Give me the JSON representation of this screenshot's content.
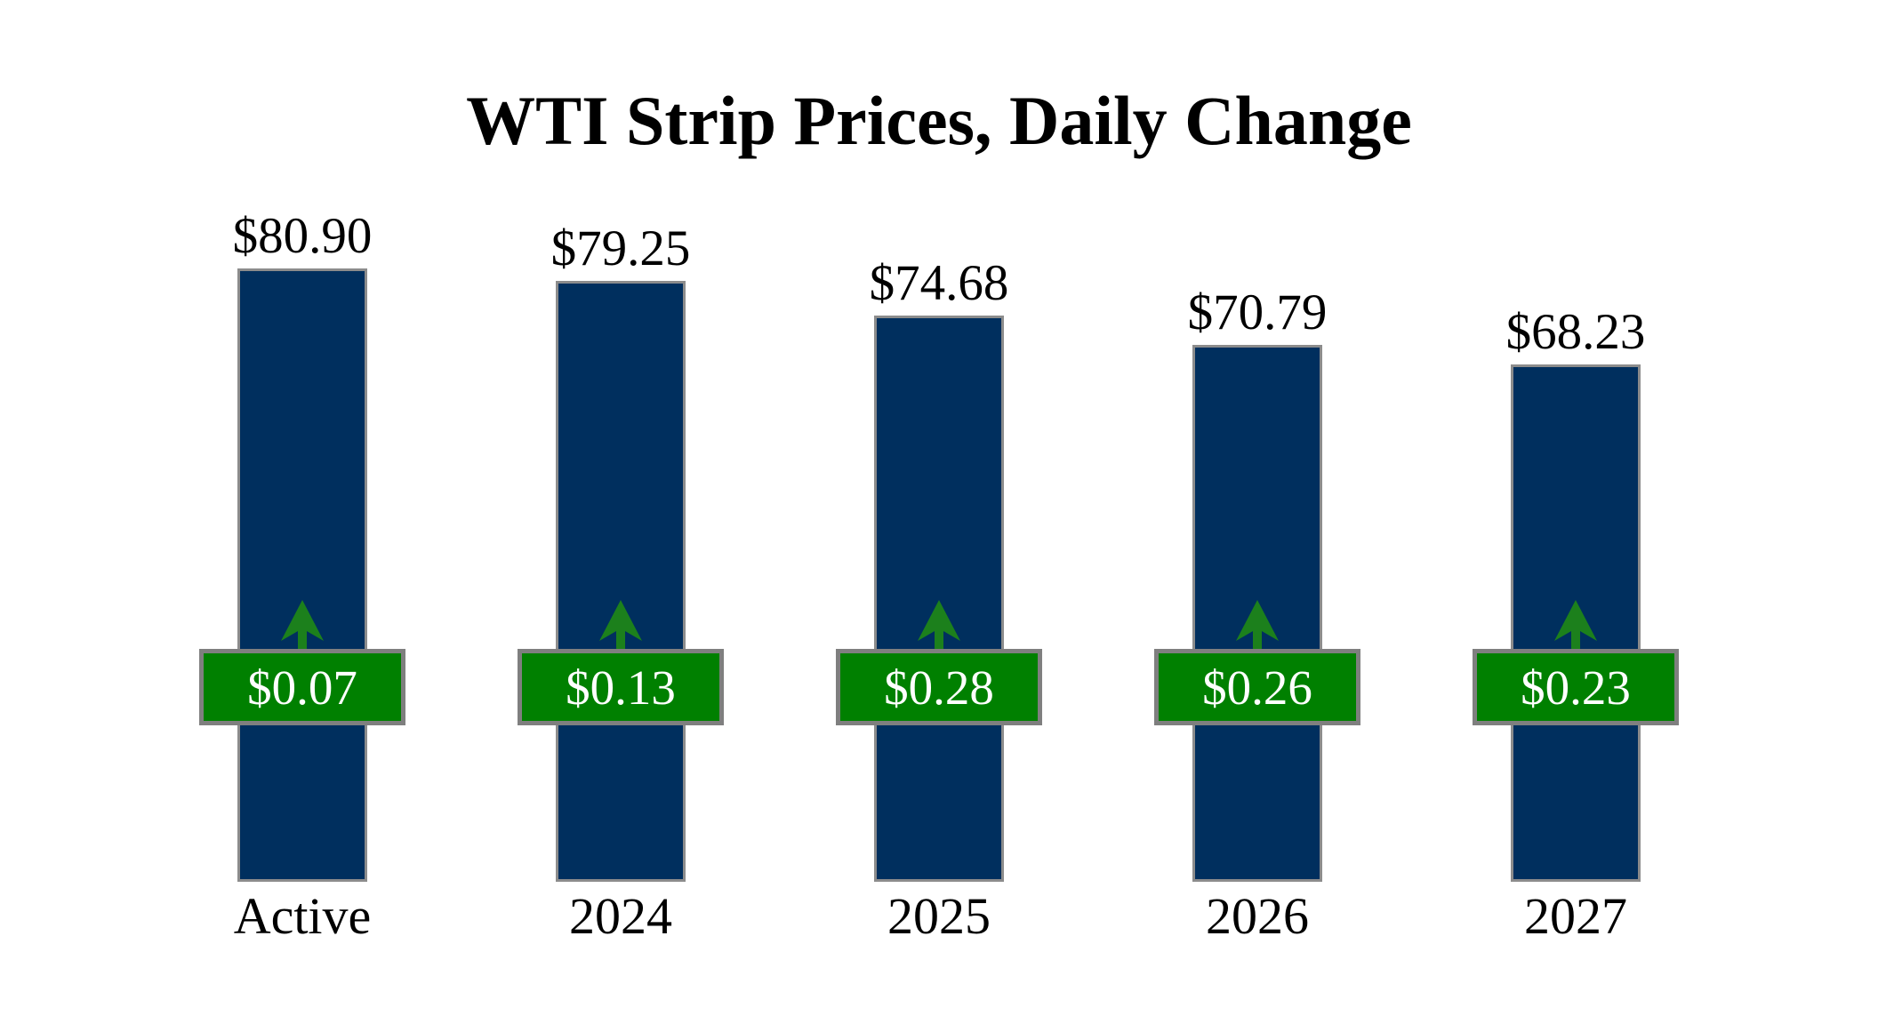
{
  "title": "WTI Strip Prices, Daily Change",
  "colors": {
    "background": "#ffffff",
    "bar_fill": "#002f5e",
    "bar_border": "#8c8c8c",
    "badge_fill": "#008000",
    "badge_border": "#7f7f7f",
    "badge_text": "#ffffff",
    "arrow_green": "#1c801c",
    "text": "#000000"
  },
  "icons": {
    "up_arrow": "up-arrow-icon"
  },
  "chart_data": {
    "type": "bar",
    "title": "WTI Strip Prices, Daily Change",
    "categories": [
      "Active",
      "2024",
      "2025",
      "2026",
      "2027"
    ],
    "series": [
      {
        "name": "WTI strip price",
        "unit": "$/bbl",
        "values": [
          80.9,
          79.25,
          74.68,
          70.79,
          68.23
        ],
        "labels": [
          "$80.90",
          "$79.25",
          "$74.68",
          "$70.79",
          "$68.23"
        ],
        "label_position": "above-bar"
      },
      {
        "name": "Daily change",
        "unit": "$",
        "values": [
          0.07,
          0.13,
          0.28,
          0.26,
          0.23
        ],
        "labels": [
          "$0.07",
          "$0.13",
          "$0.28",
          "$0.26",
          "$0.23"
        ],
        "direction": [
          "up",
          "up",
          "up",
          "up",
          "up"
        ],
        "label_position": "mid-bar-badge"
      }
    ],
    "xlabel": "",
    "ylabel": "",
    "ylim": [
      0,
      85
    ],
    "bars_start_at": 0,
    "grid": false,
    "legend": "none"
  }
}
